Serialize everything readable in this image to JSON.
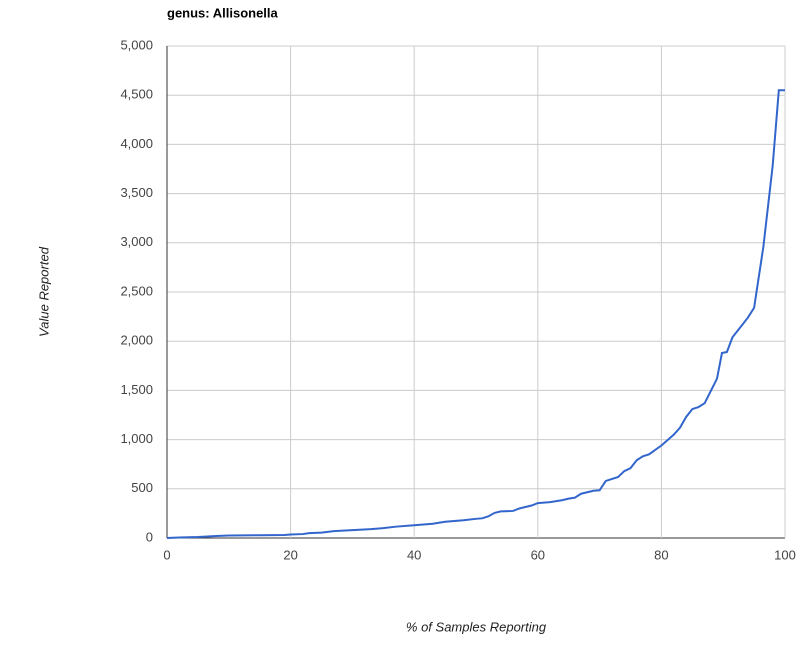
{
  "chart_data": {
    "type": "line",
    "title": "genus: Allisonella",
    "x_label": "% of Samples Reporting",
    "y_label": "Value Reported",
    "xlim": [
      0,
      100
    ],
    "xticks": [
      0,
      20,
      40,
      60,
      80,
      100
    ],
    "ylim": [
      0,
      5000
    ],
    "yticks": [
      0,
      500,
      {
        "value": 1000,
        "label": "1,000"
      },
      {
        "value": 1500,
        "label": "1,500"
      },
      {
        "value": 2000,
        "label": "2,000"
      },
      {
        "value": 2500,
        "label": "2,500"
      },
      {
        "value": 3000,
        "label": "3,000"
      },
      {
        "value": 3500,
        "label": "3,500"
      },
      {
        "value": 4000,
        "label": "4,000"
      },
      {
        "value": 4500,
        "label": "4,500"
      },
      {
        "value": 5000,
        "label": "5,000"
      }
    ],
    "grid": true,
    "series": [
      {
        "color": "#3366cc",
        "x": [
          0,
          2,
          5,
          8,
          10,
          15,
          19,
          20,
          22,
          23,
          25,
          27,
          30,
          33,
          35,
          37,
          40,
          43,
          45,
          48,
          50,
          51,
          52,
          53,
          54,
          56,
          57,
          59,
          60,
          62,
          64,
          65,
          66,
          67,
          69,
          70,
          71,
          73,
          74,
          75,
          76,
          77,
          78,
          80,
          82,
          83,
          84,
          85,
          86,
          87,
          89,
          89.8,
          90.6,
          91.5,
          93,
          94,
          95,
          96.5,
          98,
          99,
          100
        ],
        "values": [
          0,
          5,
          10,
          20,
          25,
          28,
          30,
          35,
          40,
          50,
          55,
          70,
          80,
          90,
          100,
          115,
          130,
          145,
          165,
          180,
          195,
          200,
          220,
          255,
          270,
          275,
          300,
          330,
          355,
          365,
          385,
          400,
          410,
          450,
          480,
          485,
          580,
          620,
          680,
          710,
          790,
          830,
          850,
          940,
          1050,
          1120,
          1230,
          1310,
          1330,
          1370,
          1620,
          1880,
          1890,
          2040,
          2160,
          2240,
          2340,
          2960,
          3780,
          4550,
          4550
        ]
      }
    ]
  }
}
